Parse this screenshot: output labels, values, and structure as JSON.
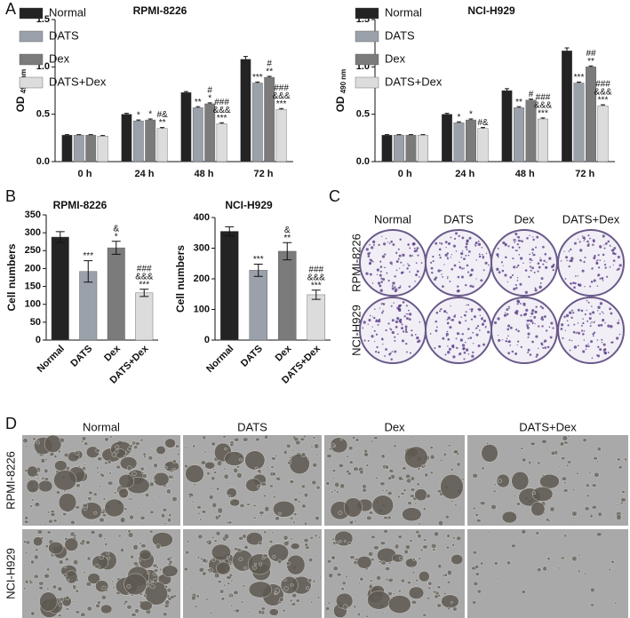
{
  "panel_labels": [
    "A",
    "B",
    "C",
    "D"
  ],
  "chart_data": [
    {
      "type": "bar",
      "title": "RPMI-8226",
      "ylabel": "OD",
      "ylabel_sub": "490 nm",
      "categories": [
        "0 h",
        "24 h",
        "48 h",
        "72 h"
      ],
      "ylim": [
        0,
        1.5
      ],
      "yticks": [
        {
          "value": 0,
          "label": "0.0"
        },
        0.5,
        {
          "value": 1,
          "label": "1.0"
        },
        1.5
      ],
      "legend": "top-left",
      "series": [
        {
          "name": "Normal",
          "color": "#232323",
          "values": [
            0.28,
            0.5,
            0.73,
            1.08
          ],
          "errors": [
            0.005,
            0.01,
            0.01,
            0.03
          ],
          "annotations": [
            null,
            null,
            null,
            null
          ]
        },
        {
          "name": "DATS",
          "color": "#9ba1aa",
          "values": [
            0.28,
            0.43,
            0.57,
            0.83
          ],
          "errors": [
            0.005,
            0.01,
            0.01,
            0.01
          ],
          "annotations": [
            null,
            [
              "*"
            ],
            [
              "**"
            ],
            [
              "***"
            ]
          ]
        },
        {
          "name": "Dex",
          "color": "#7b7b7b",
          "values": [
            0.28,
            0.44,
            0.61,
            0.89
          ],
          "errors": [
            0.005,
            0.01,
            0.01,
            0.01
          ],
          "annotations": [
            null,
            [
              "*"
            ],
            [
              "#",
              "*"
            ],
            [
              "#",
              "**"
            ]
          ]
        },
        {
          "name": "DATS+Dex",
          "color": "#dcdcdc",
          "values": [
            0.27,
            0.35,
            0.4,
            0.55
          ],
          "errors": [
            0.005,
            0.01,
            0.01,
            0.01
          ],
          "annotations": [
            null,
            [
              "#&",
              "**"
            ],
            [
              "###",
              "&&&",
              "***"
            ],
            [
              "###",
              "&&&",
              "***"
            ]
          ]
        }
      ]
    },
    {
      "type": "bar",
      "title": "NCI-H929",
      "ylabel": "OD",
      "ylabel_sub": "490 nm",
      "categories": [
        "0 h",
        "24 h",
        "48 h",
        "72 h"
      ],
      "ylim": [
        0,
        1.5
      ],
      "yticks": [
        {
          "value": 0,
          "label": "0.0"
        },
        0.5,
        {
          "value": 1,
          "label": "1.0"
        },
        1.5
      ],
      "legend": "top-left",
      "series": [
        {
          "name": "Normal",
          "color": "#232323",
          "values": [
            0.28,
            0.5,
            0.75,
            1.17
          ],
          "errors": [
            0.005,
            0.01,
            0.02,
            0.03
          ],
          "annotations": [
            null,
            null,
            null,
            null
          ]
        },
        {
          "name": "DATS",
          "color": "#9ba1aa",
          "values": [
            0.28,
            0.41,
            0.57,
            0.83
          ],
          "errors": [
            0.005,
            0.01,
            0.01,
            0.01
          ],
          "annotations": [
            null,
            [
              "*"
            ],
            [
              "**"
            ],
            [
              "***"
            ]
          ]
        },
        {
          "name": "Dex",
          "color": "#7b7b7b",
          "values": [
            0.28,
            0.44,
            0.65,
            1.0
          ],
          "errors": [
            0.005,
            0.01,
            0.01,
            0.01
          ],
          "annotations": [
            null,
            [
              "*"
            ],
            [
              "#"
            ],
            [
              "##",
              "**"
            ]
          ]
        },
        {
          "name": "DATS+Dex",
          "color": "#dcdcdc",
          "values": [
            0.28,
            0.35,
            0.45,
            0.59
          ],
          "errors": [
            0.005,
            0.01,
            0.01,
            0.01
          ],
          "annotations": [
            null,
            [
              "#&"
            ],
            [
              "###",
              "&&&",
              "***"
            ],
            [
              "###",
              "&&&",
              "***"
            ]
          ]
        }
      ]
    },
    {
      "type": "bar",
      "title": "RPMI-8226",
      "ylabel": "Cell numbers",
      "categories": [
        "Normal",
        "DATS",
        "Dex",
        "DATS+Dex"
      ],
      "ylim": [
        0,
        350
      ],
      "yticks": [
        0,
        50,
        100,
        150,
        200,
        250,
        300,
        350
      ],
      "colors": [
        "#232323",
        "#9ba1aa",
        "#7b7b7b",
        "#dcdcdc"
      ],
      "values": [
        288,
        192,
        258,
        132
      ],
      "errors": [
        15,
        30,
        18,
        10
      ],
      "annotations": [
        null,
        [
          "***"
        ],
        [
          "&",
          "*"
        ],
        [
          "###",
          "&&&",
          "***"
        ]
      ]
    },
    {
      "type": "bar",
      "title": "NCI-H929",
      "ylabel": "Cell numbers",
      "categories": [
        "Normal",
        "DATS",
        "Dex",
        "DATS+Dex"
      ],
      "ylim": [
        0,
        400
      ],
      "yticks": [
        0,
        100,
        200,
        300,
        400
      ],
      "colors": [
        "#232323",
        "#9ba1aa",
        "#7b7b7b",
        "#dcdcdc"
      ],
      "values": [
        355,
        228,
        290,
        148
      ],
      "errors": [
        15,
        20,
        28,
        15
      ],
      "annotations": [
        null,
        [
          "***"
        ],
        [
          "&",
          "**"
        ],
        [
          "###",
          "&&&",
          "***"
        ]
      ]
    }
  ],
  "colony_panel": {
    "columns": [
      "Normal",
      "DATS",
      "Dex",
      "DATS+Dex"
    ],
    "rows": [
      "RPMI-8226",
      "NCI-H929"
    ]
  },
  "micro_panel": {
    "columns": [
      "Normal",
      "DATS",
      "Dex",
      "DATS+Dex"
    ],
    "rows": [
      "RPMI-8226",
      "NCI-H929"
    ]
  }
}
